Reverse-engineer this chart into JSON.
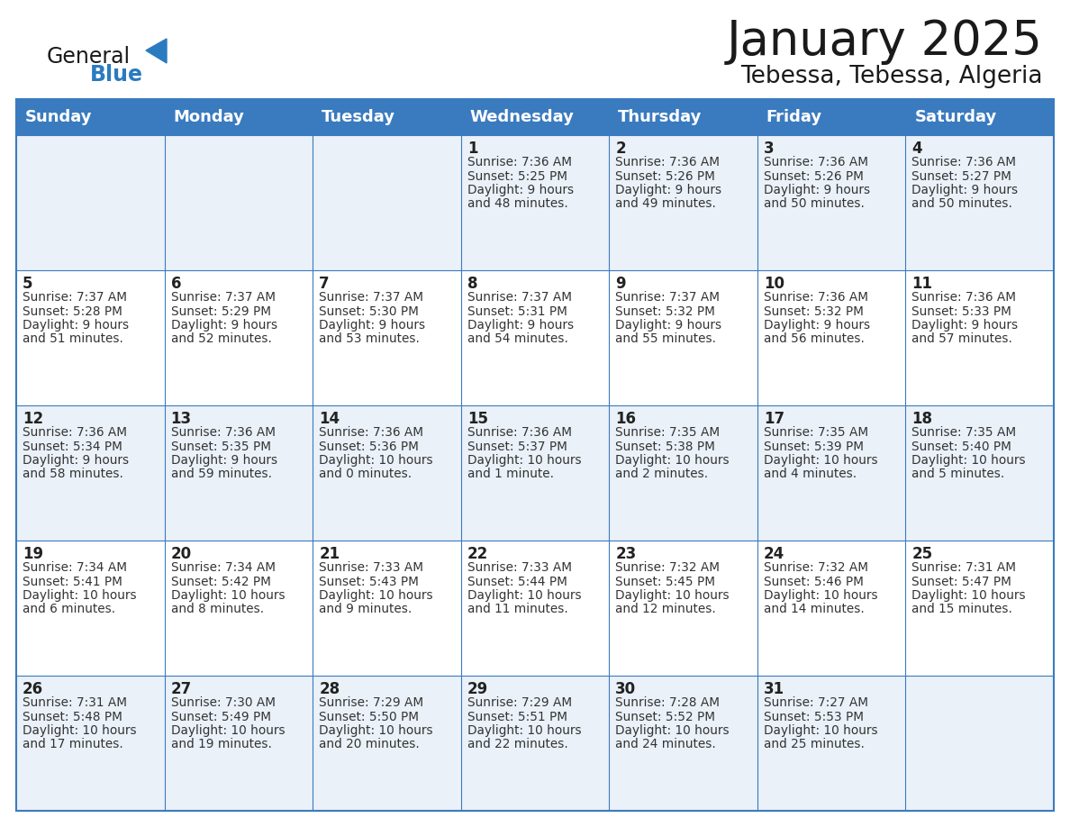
{
  "title": "January 2025",
  "subtitle": "Tebessa, Tebessa, Algeria",
  "header_bg_color": "#3a7bbf",
  "header_text_color": "#ffffff",
  "border_color": "#3a7bbf",
  "days_of_week": [
    "Sunday",
    "Monday",
    "Tuesday",
    "Wednesday",
    "Thursday",
    "Friday",
    "Saturday"
  ],
  "title_color": "#1a1a1a",
  "subtitle_color": "#1a1a1a",
  "cell_text_color": "#333333",
  "day_number_color": "#222222",
  "logo_general_color": "#1a1a1a",
  "logo_blue_color": "#2a7bc0",
  "row_bg_odd": "#eaf1f8",
  "row_bg_even": "#ffffff",
  "calendar_data": [
    [
      {
        "day": "",
        "sunrise": "",
        "sunset": "",
        "daylight": ""
      },
      {
        "day": "",
        "sunrise": "",
        "sunset": "",
        "daylight": ""
      },
      {
        "day": "",
        "sunrise": "",
        "sunset": "",
        "daylight": ""
      },
      {
        "day": "1",
        "sunrise": "7:36 AM",
        "sunset": "5:25 PM",
        "daylight_line1": "Daylight: 9 hours",
        "daylight_line2": "and 48 minutes."
      },
      {
        "day": "2",
        "sunrise": "7:36 AM",
        "sunset": "5:26 PM",
        "daylight_line1": "Daylight: 9 hours",
        "daylight_line2": "and 49 minutes."
      },
      {
        "day": "3",
        "sunrise": "7:36 AM",
        "sunset": "5:26 PM",
        "daylight_line1": "Daylight: 9 hours",
        "daylight_line2": "and 50 minutes."
      },
      {
        "day": "4",
        "sunrise": "7:36 AM",
        "sunset": "5:27 PM",
        "daylight_line1": "Daylight: 9 hours",
        "daylight_line2": "and 50 minutes."
      }
    ],
    [
      {
        "day": "5",
        "sunrise": "7:37 AM",
        "sunset": "5:28 PM",
        "daylight_line1": "Daylight: 9 hours",
        "daylight_line2": "and 51 minutes."
      },
      {
        "day": "6",
        "sunrise": "7:37 AM",
        "sunset": "5:29 PM",
        "daylight_line1": "Daylight: 9 hours",
        "daylight_line2": "and 52 minutes."
      },
      {
        "day": "7",
        "sunrise": "7:37 AM",
        "sunset": "5:30 PM",
        "daylight_line1": "Daylight: 9 hours",
        "daylight_line2": "and 53 minutes."
      },
      {
        "day": "8",
        "sunrise": "7:37 AM",
        "sunset": "5:31 PM",
        "daylight_line1": "Daylight: 9 hours",
        "daylight_line2": "and 54 minutes."
      },
      {
        "day": "9",
        "sunrise": "7:37 AM",
        "sunset": "5:32 PM",
        "daylight_line1": "Daylight: 9 hours",
        "daylight_line2": "and 55 minutes."
      },
      {
        "day": "10",
        "sunrise": "7:36 AM",
        "sunset": "5:32 PM",
        "daylight_line1": "Daylight: 9 hours",
        "daylight_line2": "and 56 minutes."
      },
      {
        "day": "11",
        "sunrise": "7:36 AM",
        "sunset": "5:33 PM",
        "daylight_line1": "Daylight: 9 hours",
        "daylight_line2": "and 57 minutes."
      }
    ],
    [
      {
        "day": "12",
        "sunrise": "7:36 AM",
        "sunset": "5:34 PM",
        "daylight_line1": "Daylight: 9 hours",
        "daylight_line2": "and 58 minutes."
      },
      {
        "day": "13",
        "sunrise": "7:36 AM",
        "sunset": "5:35 PM",
        "daylight_line1": "Daylight: 9 hours",
        "daylight_line2": "and 59 minutes."
      },
      {
        "day": "14",
        "sunrise": "7:36 AM",
        "sunset": "5:36 PM",
        "daylight_line1": "Daylight: 10 hours",
        "daylight_line2": "and 0 minutes."
      },
      {
        "day": "15",
        "sunrise": "7:36 AM",
        "sunset": "5:37 PM",
        "daylight_line1": "Daylight: 10 hours",
        "daylight_line2": "and 1 minute."
      },
      {
        "day": "16",
        "sunrise": "7:35 AM",
        "sunset": "5:38 PM",
        "daylight_line1": "Daylight: 10 hours",
        "daylight_line2": "and 2 minutes."
      },
      {
        "day": "17",
        "sunrise": "7:35 AM",
        "sunset": "5:39 PM",
        "daylight_line1": "Daylight: 10 hours",
        "daylight_line2": "and 4 minutes."
      },
      {
        "day": "18",
        "sunrise": "7:35 AM",
        "sunset": "5:40 PM",
        "daylight_line1": "Daylight: 10 hours",
        "daylight_line2": "and 5 minutes."
      }
    ],
    [
      {
        "day": "19",
        "sunrise": "7:34 AM",
        "sunset": "5:41 PM",
        "daylight_line1": "Daylight: 10 hours",
        "daylight_line2": "and 6 minutes."
      },
      {
        "day": "20",
        "sunrise": "7:34 AM",
        "sunset": "5:42 PM",
        "daylight_line1": "Daylight: 10 hours",
        "daylight_line2": "and 8 minutes."
      },
      {
        "day": "21",
        "sunrise": "7:33 AM",
        "sunset": "5:43 PM",
        "daylight_line1": "Daylight: 10 hours",
        "daylight_line2": "and 9 minutes."
      },
      {
        "day": "22",
        "sunrise": "7:33 AM",
        "sunset": "5:44 PM",
        "daylight_line1": "Daylight: 10 hours",
        "daylight_line2": "and 11 minutes."
      },
      {
        "day": "23",
        "sunrise": "7:32 AM",
        "sunset": "5:45 PM",
        "daylight_line1": "Daylight: 10 hours",
        "daylight_line2": "and 12 minutes."
      },
      {
        "day": "24",
        "sunrise": "7:32 AM",
        "sunset": "5:46 PM",
        "daylight_line1": "Daylight: 10 hours",
        "daylight_line2": "and 14 minutes."
      },
      {
        "day": "25",
        "sunrise": "7:31 AM",
        "sunset": "5:47 PM",
        "daylight_line1": "Daylight: 10 hours",
        "daylight_line2": "and 15 minutes."
      }
    ],
    [
      {
        "day": "26",
        "sunrise": "7:31 AM",
        "sunset": "5:48 PM",
        "daylight_line1": "Daylight: 10 hours",
        "daylight_line2": "and 17 minutes."
      },
      {
        "day": "27",
        "sunrise": "7:30 AM",
        "sunset": "5:49 PM",
        "daylight_line1": "Daylight: 10 hours",
        "daylight_line2": "and 19 minutes."
      },
      {
        "day": "28",
        "sunrise": "7:29 AM",
        "sunset": "5:50 PM",
        "daylight_line1": "Daylight: 10 hours",
        "daylight_line2": "and 20 minutes."
      },
      {
        "day": "29",
        "sunrise": "7:29 AM",
        "sunset": "5:51 PM",
        "daylight_line1": "Daylight: 10 hours",
        "daylight_line2": "and 22 minutes."
      },
      {
        "day": "30",
        "sunrise": "7:28 AM",
        "sunset": "5:52 PM",
        "daylight_line1": "Daylight: 10 hours",
        "daylight_line2": "and 24 minutes."
      },
      {
        "day": "31",
        "sunrise": "7:27 AM",
        "sunset": "5:53 PM",
        "daylight_line1": "Daylight: 10 hours",
        "daylight_line2": "and 25 minutes."
      },
      {
        "day": "",
        "sunrise": "",
        "sunset": "",
        "daylight_line1": "",
        "daylight_line2": ""
      }
    ]
  ]
}
